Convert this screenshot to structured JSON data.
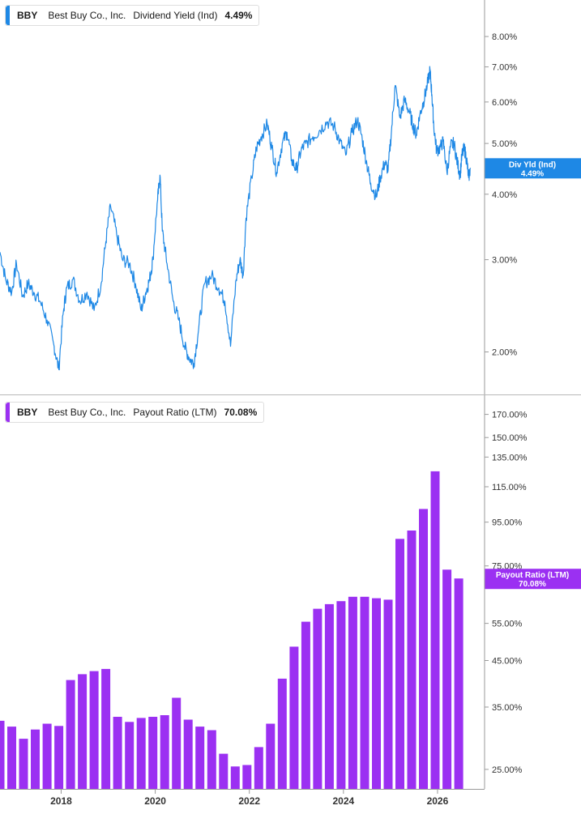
{
  "panels": {
    "yield": {
      "ticker": "BBY",
      "company": "Best Buy Co., Inc.",
      "metric": "Dividend Yield (Ind)",
      "value": "4.49%",
      "tag_line1": "Div Yld (Ind)",
      "tag_line2": "4.49%",
      "color": "#1E88E5"
    },
    "payout": {
      "ticker": "BBY",
      "company": "Best Buy Co., Inc.",
      "metric": "Payout Ratio (LTM)",
      "value": "70.08%",
      "tag_line1": "Payout Ratio (LTM)",
      "tag_line2": "70.08%",
      "color": "#9B30F2"
    }
  },
  "chart_data": [
    {
      "type": "line",
      "name": "Dividend Yield (Ind)",
      "y_scale": "log",
      "ylim": [
        1.75,
        9.0
      ],
      "y_ticks": [
        {
          "v": 8.0,
          "label": "8.00%"
        },
        {
          "v": 7.0,
          "label": "7.00%"
        },
        {
          "v": 6.0,
          "label": "6.00%"
        },
        {
          "v": 5.0,
          "label": "5.00%"
        },
        {
          "v": 4.0,
          "label": "4.00%"
        },
        {
          "v": 3.0,
          "label": "3.00%"
        },
        {
          "v": 2.0,
          "label": "2.00%"
        }
      ],
      "xlim": [
        2016.7,
        2027.0
      ],
      "x": [
        2016.7,
        2016.82,
        2016.95,
        2017.05,
        2017.18,
        2017.3,
        2017.42,
        2017.55,
        2017.7,
        2017.85,
        2017.95,
        2018.05,
        2018.12,
        2018.25,
        2018.4,
        2018.55,
        2018.7,
        2018.85,
        2018.95,
        2019.05,
        2019.18,
        2019.3,
        2019.45,
        2019.58,
        2019.7,
        2019.8,
        2019.88,
        2019.95,
        2020.05,
        2020.1,
        2020.15,
        2020.25,
        2020.38,
        2020.5,
        2020.62,
        2020.72,
        2020.82,
        2020.92,
        2021.05,
        2021.2,
        2021.35,
        2021.48,
        2021.6,
        2021.72,
        2021.8,
        2021.87,
        2021.93,
        2022.05,
        2022.15,
        2022.25,
        2022.38,
        2022.48,
        2022.58,
        2022.7,
        2022.8,
        2022.9,
        2023.0,
        2023.1,
        2023.2,
        2023.35,
        2023.5,
        2023.65,
        2023.8,
        2023.92,
        2024.05,
        2024.18,
        2024.3,
        2024.4,
        2024.5,
        2024.58,
        2024.7,
        2024.78,
        2024.88,
        2024.95,
        2025.02,
        2025.1,
        2025.2,
        2025.3,
        2025.4,
        2025.48,
        2025.55,
        2025.62,
        2025.7,
        2025.78,
        2025.84,
        2025.88,
        2025.92,
        2025.98,
        2026.05,
        2026.12,
        2026.2,
        2026.28,
        2026.35,
        2026.42,
        2026.48,
        2026.52,
        2026.57,
        2026.62,
        2026.66,
        2026.7
      ],
      "values": [
        3.1,
        2.75,
        2.6,
        2.95,
        2.55,
        2.7,
        2.6,
        2.5,
        2.3,
        2.05,
        1.85,
        2.4,
        2.65,
        2.75,
        2.5,
        2.6,
        2.4,
        2.7,
        3.25,
        3.8,
        3.35,
        3.0,
        2.95,
        2.7,
        2.4,
        2.6,
        2.75,
        3.0,
        3.9,
        4.35,
        3.4,
        2.95,
        2.5,
        2.3,
        2.05,
        1.95,
        1.9,
        2.2,
        2.7,
        2.8,
        2.65,
        2.5,
        2.05,
        2.75,
        3.0,
        2.8,
        3.6,
        4.3,
        4.9,
        5.15,
        5.45,
        4.9,
        4.4,
        5.0,
        5.25,
        4.65,
        4.45,
        4.85,
        5.0,
        5.15,
        5.3,
        5.5,
        5.4,
        5.05,
        4.75,
        5.25,
        5.55,
        5.1,
        4.55,
        4.2,
        3.95,
        4.3,
        4.6,
        4.45,
        5.25,
        6.45,
        5.6,
        6.05,
        5.75,
        5.4,
        5.2,
        5.65,
        6.0,
        6.45,
        6.9,
        6.2,
        5.4,
        4.85,
        4.9,
        5.05,
        4.4,
        4.95,
        5.0,
        4.6,
        4.35,
        4.75,
        4.9,
        4.65,
        4.3,
        4.49
      ]
    },
    {
      "type": "bar",
      "name": "Payout Ratio (LTM)",
      "y_scale": "log",
      "ylim": [
        22.5,
        182.0
      ],
      "y_ticks": [
        {
          "v": 170,
          "label": "170.00%"
        },
        {
          "v": 150,
          "label": "150.00%"
        },
        {
          "v": 135,
          "label": "135.00%"
        },
        {
          "v": 115,
          "label": "115.00%"
        },
        {
          "v": 95,
          "label": "95.00%"
        },
        {
          "v": 75,
          "label": "75.00%"
        },
        {
          "v": 55,
          "label": "55.00%"
        },
        {
          "v": 45,
          "label": "45.00%"
        },
        {
          "v": 35,
          "label": "35.00%"
        },
        {
          "v": 25,
          "label": "25.00%"
        }
      ],
      "xlim": [
        2016.7,
        2027.0
      ],
      "x_ticks": [
        2018,
        2020,
        2022,
        2024,
        2026
      ],
      "x": [
        2016.7,
        2016.95,
        2017.2,
        2017.45,
        2017.7,
        2017.95,
        2018.2,
        2018.45,
        2018.7,
        2018.95,
        2019.2,
        2019.45,
        2019.7,
        2019.95,
        2020.2,
        2020.45,
        2020.7,
        2020.95,
        2021.2,
        2021.45,
        2021.7,
        2021.95,
        2022.2,
        2022.45,
        2022.7,
        2022.95,
        2023.2,
        2023.45,
        2023.7,
        2023.95,
        2024.2,
        2024.45,
        2024.7,
        2024.95,
        2025.2,
        2025.45,
        2025.7,
        2025.95,
        2026.2,
        2026.45
      ],
      "values": [
        32.5,
        31.5,
        29.5,
        31.0,
        32.0,
        31.6,
        40.5,
        41.8,
        42.5,
        43.0,
        33.2,
        32.3,
        33.0,
        33.2,
        33.5,
        36.8,
        32.7,
        31.5,
        30.9,
        27.2,
        25.4,
        25.6,
        28.2,
        32.0,
        40.8,
        48.5,
        55.5,
        59.5,
        61.0,
        62.0,
        63.5,
        63.5,
        63.0,
        62.5,
        86.8,
        90.8,
        102.0,
        125.0,
        73.5,
        70.08
      ]
    }
  ]
}
